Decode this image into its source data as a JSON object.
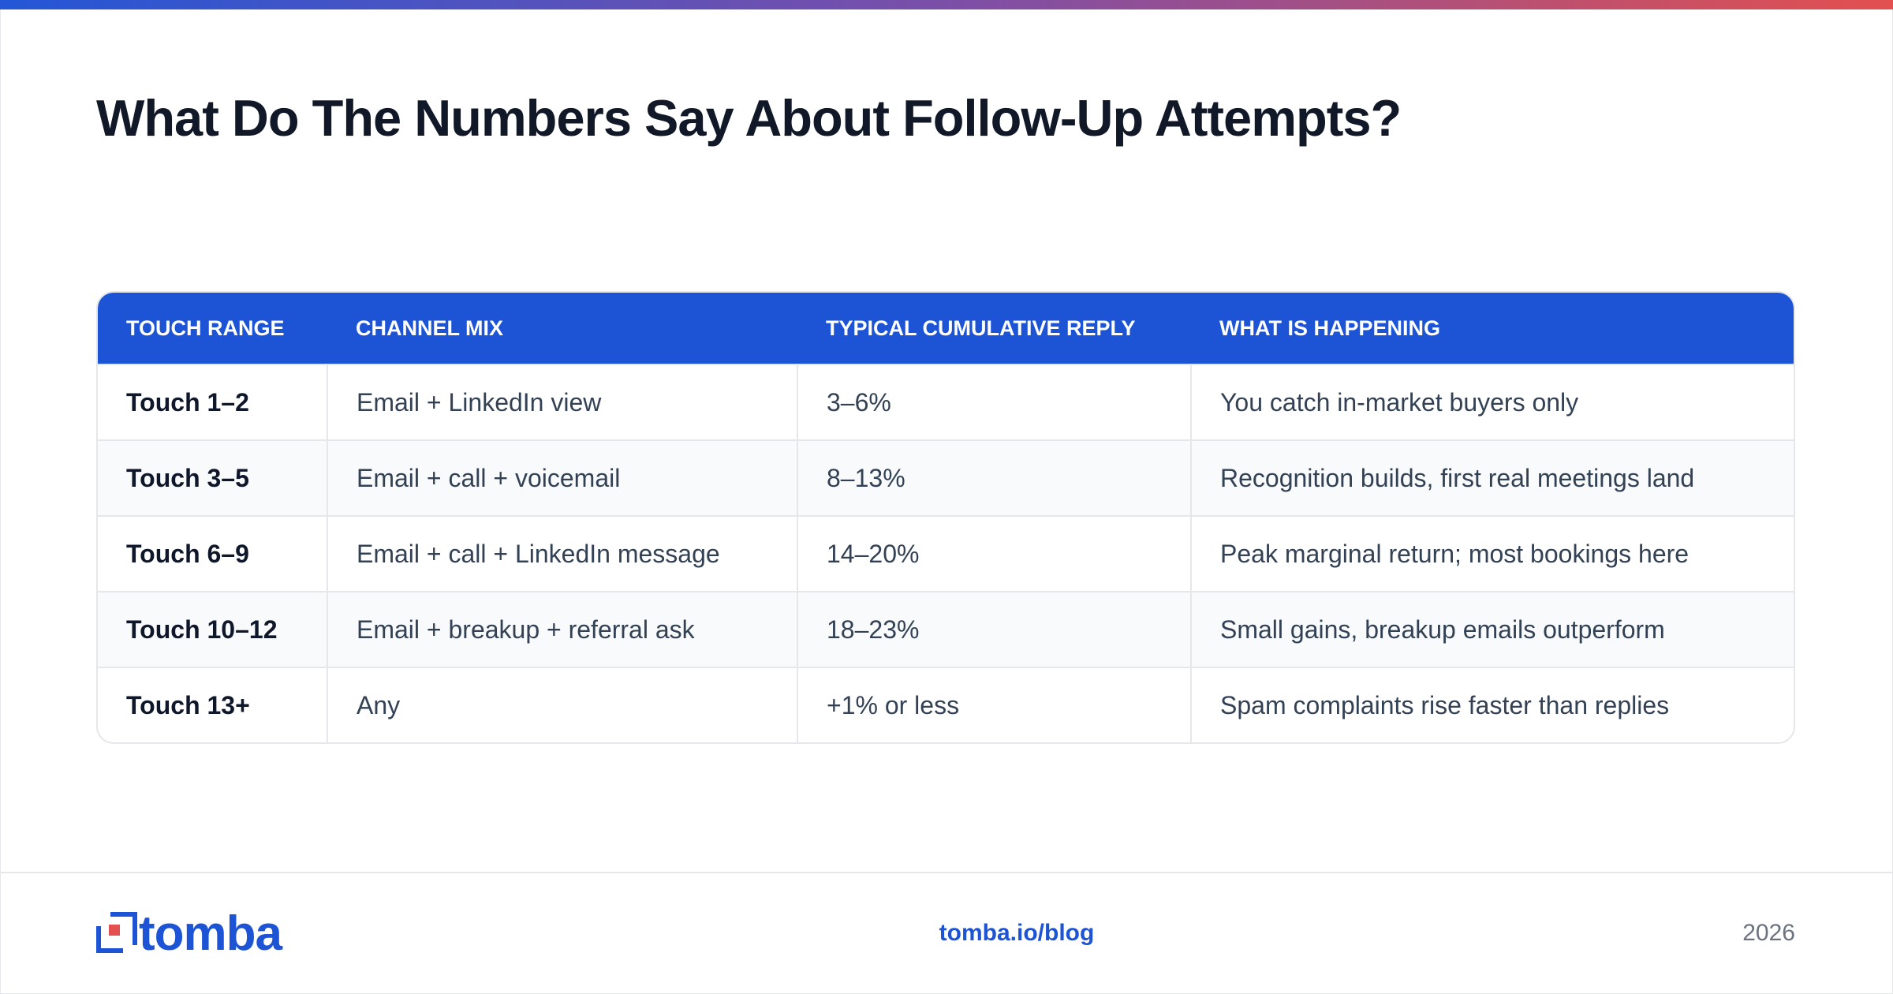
{
  "header": {
    "title": "What Do The Numbers Say About Follow-Up Attempts?"
  },
  "table": {
    "columns": [
      "TOUCH RANGE",
      "CHANNEL MIX",
      "TYPICAL CUMULATIVE REPLY",
      "WHAT IS HAPPENING"
    ],
    "rows": [
      [
        "Touch 1–2",
        "Email + LinkedIn view",
        "3–6%",
        "You catch in-market buyers only"
      ],
      [
        "Touch 3–5",
        "Email + call + voicemail",
        "8–13%",
        "Recognition builds, first real meetings land"
      ],
      [
        "Touch 6–9",
        "Email + call + LinkedIn message",
        "14–20%",
        "Peak marginal return; most bookings here"
      ],
      [
        "Touch 10–12",
        "Email + breakup + referral ask",
        "18–23%",
        "Small gains, breakup emails outperform"
      ],
      [
        "Touch 13+",
        "Any",
        "+1% or less",
        "Spam complaints rise faster than replies"
      ]
    ]
  },
  "footer": {
    "logo": "tomba",
    "link": "tomba.io/blog",
    "year": "2026"
  }
}
